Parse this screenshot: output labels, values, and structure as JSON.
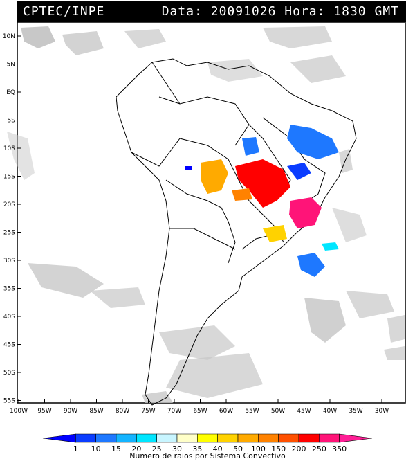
{
  "header": {
    "title": "CPTEC/INPE",
    "datetime": "Data: 20091026 Hora: 1830 GMT"
  },
  "map": {
    "lat_labels": [
      "10N",
      "5N",
      "EQ",
      "5S",
      "10S",
      "15S",
      "20S",
      "25S",
      "30S",
      "35S",
      "40S",
      "45S",
      "50S",
      "55S"
    ],
    "lon_labels": [
      "100W",
      "95W",
      "90W",
      "85W",
      "80W",
      "75W",
      "70W",
      "65W",
      "60W",
      "55W",
      "50W",
      "45W",
      "40W",
      "35W",
      "30W"
    ],
    "satellite_color": "#c8c8c8"
  },
  "legend": {
    "values": [
      "1",
      "10",
      "15",
      "20",
      "25",
      "30",
      "35",
      "40",
      "50",
      "100",
      "150",
      "200",
      "250",
      "350"
    ],
    "colors": [
      "#0000ff",
      "#0a3cff",
      "#1e78ff",
      "#14b4ff",
      "#00e6ff",
      "#c8f5ff",
      "#ffffc8",
      "#ffff00",
      "#ffd200",
      "#ffaa00",
      "#ff8200",
      "#ff5000",
      "#ff0000",
      "#ff1478",
      "#ff1e96"
    ],
    "title": "Numero de raios por Sistema Convectivo"
  },
  "storms": [
    {
      "name": "storm-bolivia",
      "color": "#ffaa00"
    },
    {
      "name": "storm-mato-grosso",
      "color": "#ff0000"
    },
    {
      "name": "storm-southeast",
      "color": "#ff1478"
    },
    {
      "name": "storm-nordeste",
      "color": "#1e78ff"
    },
    {
      "name": "storm-goias",
      "color": "#0a3cff"
    },
    {
      "name": "storm-parana",
      "color": "#ffd200"
    },
    {
      "name": "storm-atlantic",
      "color": "#1e78ff"
    },
    {
      "name": "storm-atlantic-small",
      "color": "#00e6ff"
    }
  ]
}
